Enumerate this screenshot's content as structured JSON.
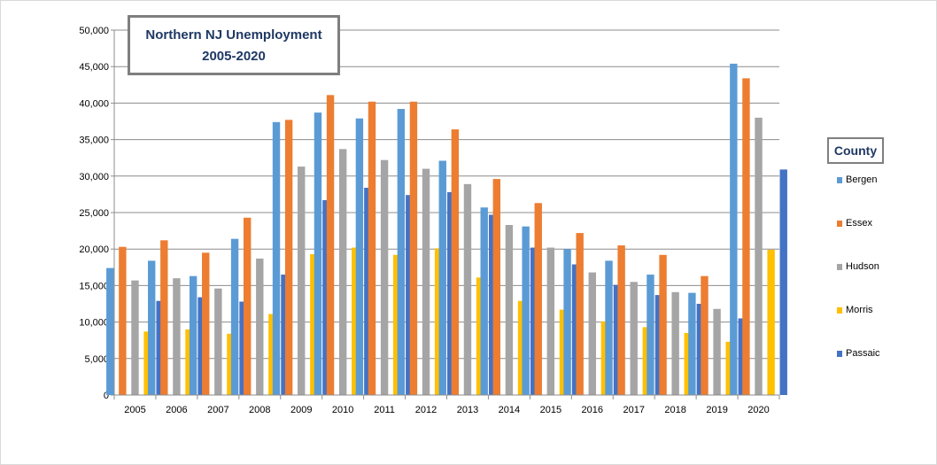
{
  "chart_data": {
    "type": "bar",
    "title": "Northern NJ Unemployment",
    "subtitle": "2005-2020",
    "xlabel": "",
    "ylabel": "",
    "legend_title": "County",
    "legend_position": "right",
    "grid": true,
    "ylim": [
      0,
      50000
    ],
    "yticks": [
      "0",
      "5,000",
      "10,000",
      "15,000",
      "20,000",
      "25,000",
      "30,000",
      "35,000",
      "40,000",
      "45,000",
      "50,000"
    ],
    "categories": [
      "2005",
      "2006",
      "2007",
      "2008",
      "2009",
      "2010",
      "2011",
      "2012",
      "2013",
      "2014",
      "2015",
      "2016",
      "2017",
      "2018",
      "2019",
      "2020"
    ],
    "series": [
      {
        "name": "Bergen",
        "color": "#5b9bd5",
        "values": [
          17400,
          18400,
          16300,
          21400,
          37400,
          38700,
          37900,
          39200,
          32100,
          25700,
          23100,
          20000,
          18400,
          16500,
          14000,
          45400
        ]
      },
      {
        "name": "Essex",
        "color": "#ed7d31",
        "values": [
          20300,
          21200,
          19500,
          24300,
          37700,
          41100,
          40200,
          40200,
          36400,
          29600,
          26300,
          22200,
          20500,
          19200,
          16300,
          43400
        ]
      },
      {
        "name": "Hudson",
        "color": "#a5a5a5",
        "values": [
          15700,
          16000,
          14600,
          18700,
          31300,
          33700,
          32200,
          31000,
          28900,
          23300,
          20200,
          16800,
          15500,
          14100,
          11800,
          38000
        ]
      },
      {
        "name": "Morris",
        "color": "#ffc000",
        "values": [
          8700,
          9000,
          8400,
          11100,
          19300,
          20200,
          19200,
          20100,
          16100,
          12900,
          11700,
          10100,
          9300,
          8500,
          7300,
          19900
        ]
      },
      {
        "name": "Passaic",
        "color": "#4472c4",
        "values": [
          12900,
          13400,
          12800,
          16500,
          26700,
          28400,
          27400,
          27800,
          24700,
          20200,
          17900,
          15100,
          13700,
          12500,
          10500,
          30900
        ]
      }
    ]
  }
}
